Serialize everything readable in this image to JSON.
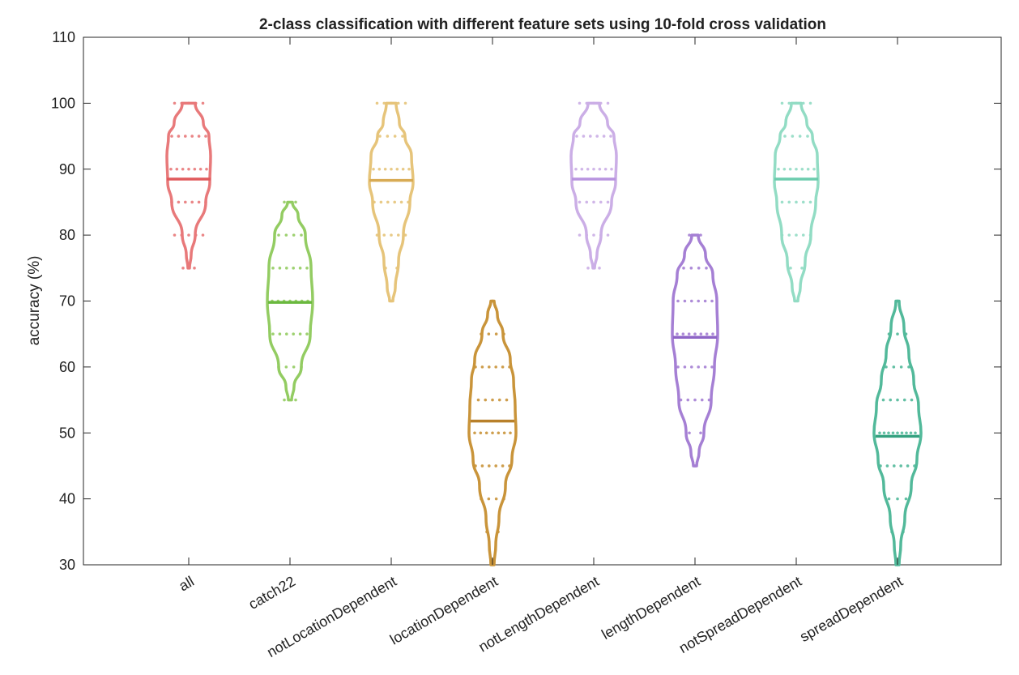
{
  "chart_data": {
    "type": "violin",
    "title": "2-class classification with different feature sets using 10-fold cross validation",
    "xlabel": "",
    "ylabel": "accuracy (%)",
    "ylim": [
      30,
      110
    ],
    "yticks": [
      30,
      40,
      50,
      60,
      70,
      80,
      90,
      100,
      110
    ],
    "grid": false,
    "legend": "none",
    "categories": [
      "all",
      "catch22",
      "notLocationDependent",
      "locationDependent",
      "notLengthDependent",
      "lengthDependent",
      "notSpreadDependent",
      "spreadDependent"
    ],
    "series": [
      {
        "color": "#e8797a",
        "median_color": "#e05a5c",
        "median": 88.5,
        "points": [
          [
            100,
            5
          ],
          [
            95,
            6
          ],
          [
            90,
            7
          ],
          [
            85,
            6
          ],
          [
            80,
            5
          ],
          [
            75,
            2
          ]
        ],
        "profile": [
          [
            75,
            1
          ],
          [
            77,
            3
          ],
          [
            80,
            8
          ],
          [
            85,
            21
          ],
          [
            88,
            26
          ],
          [
            92,
            27
          ],
          [
            95,
            25
          ],
          [
            97,
            18
          ],
          [
            100,
            8
          ]
        ]
      },
      {
        "color": "#93cc62",
        "median_color": "#6ab83e",
        "median": 69.8,
        "points": [
          [
            85,
            2
          ],
          [
            80,
            4
          ],
          [
            75,
            6
          ],
          [
            70,
            7
          ],
          [
            65,
            6
          ],
          [
            60,
            4
          ],
          [
            55,
            2
          ]
        ],
        "profile": [
          [
            55,
            2
          ],
          [
            57,
            5
          ],
          [
            60,
            14
          ],
          [
            65,
            25
          ],
          [
            70,
            28
          ],
          [
            75,
            26
          ],
          [
            80,
            19
          ],
          [
            83,
            10
          ],
          [
            85,
            3
          ]
        ]
      },
      {
        "color": "#e6c47a",
        "median_color": "#d8ab55",
        "median": 88.3,
        "points": [
          [
            100,
            5
          ],
          [
            95,
            4
          ],
          [
            90,
            7
          ],
          [
            85,
            6
          ],
          [
            80,
            5
          ],
          [
            75,
            2
          ],
          [
            70,
            1
          ]
        ],
        "profile": [
          [
            70,
            2
          ],
          [
            72,
            5
          ],
          [
            76,
            9
          ],
          [
            80,
            15
          ],
          [
            85,
            23
          ],
          [
            88,
            27
          ],
          [
            92,
            25
          ],
          [
            95,
            17
          ],
          [
            97,
            10
          ],
          [
            100,
            6
          ]
        ]
      },
      {
        "color": "#c9943a",
        "median_color": "#b8802a",
        "median": 51.8,
        "points": [
          [
            70,
            1
          ],
          [
            65,
            4
          ],
          [
            60,
            6
          ],
          [
            55,
            5
          ],
          [
            50,
            7
          ],
          [
            45,
            6
          ],
          [
            40,
            4
          ],
          [
            35,
            2
          ],
          [
            30,
            1
          ]
        ],
        "profile": [
          [
            30,
            2
          ],
          [
            33,
            4
          ],
          [
            37,
            8
          ],
          [
            42,
            16
          ],
          [
            46,
            24
          ],
          [
            50,
            29
          ],
          [
            54,
            28
          ],
          [
            58,
            26
          ],
          [
            61,
            22
          ],
          [
            65,
            13
          ],
          [
            68,
            6
          ],
          [
            70,
            2
          ]
        ]
      },
      {
        "color": "#cbaee6",
        "median_color": "#b894df",
        "median": 88.5,
        "points": [
          [
            100,
            5
          ],
          [
            95,
            6
          ],
          [
            90,
            7
          ],
          [
            85,
            5
          ],
          [
            80,
            5
          ],
          [
            75,
            2
          ]
        ],
        "profile": [
          [
            75,
            1
          ],
          [
            77,
            4
          ],
          [
            80,
            9
          ],
          [
            85,
            22
          ],
          [
            88,
            27
          ],
          [
            92,
            28
          ],
          [
            95,
            25
          ],
          [
            97,
            17
          ],
          [
            100,
            7
          ]
        ]
      },
      {
        "color": "#a57fd4",
        "median_color": "#8e65c6",
        "median": 64.5,
        "points": [
          [
            80,
            2
          ],
          [
            75,
            4
          ],
          [
            70,
            6
          ],
          [
            65,
            7
          ],
          [
            60,
            6
          ],
          [
            55,
            5
          ],
          [
            50,
            2
          ],
          [
            45,
            1
          ]
        ],
        "profile": [
          [
            45,
            2
          ],
          [
            47,
            5
          ],
          [
            50,
            11
          ],
          [
            55,
            20
          ],
          [
            60,
            24
          ],
          [
            65,
            28
          ],
          [
            70,
            27
          ],
          [
            74,
            22
          ],
          [
            77,
            13
          ],
          [
            80,
            4
          ]
        ]
      },
      {
        "color": "#92dcc4",
        "median_color": "#6cccae",
        "median": 88.5,
        "points": [
          [
            100,
            5
          ],
          [
            95,
            4
          ],
          [
            90,
            7
          ],
          [
            85,
            5
          ],
          [
            80,
            5
          ],
          [
            75,
            2
          ]
        ],
        "profile": [
          [
            70,
            2
          ],
          [
            72,
            5
          ],
          [
            76,
            11
          ],
          [
            80,
            18
          ],
          [
            85,
            24
          ],
          [
            88,
            27
          ],
          [
            92,
            26
          ],
          [
            95,
            20
          ],
          [
            97,
            13
          ],
          [
            100,
            6
          ]
        ]
      },
      {
        "color": "#52b99a",
        "median_color": "#33a17f",
        "median": 49.5,
        "points": [
          [
            70,
            1
          ],
          [
            65,
            3
          ],
          [
            60,
            4
          ],
          [
            55,
            5
          ],
          [
            50,
            9
          ],
          [
            45,
            6
          ],
          [
            40,
            3
          ],
          [
            35,
            2
          ],
          [
            30,
            1
          ]
        ],
        "profile": [
          [
            30,
            2
          ],
          [
            33,
            4
          ],
          [
            37,
            9
          ],
          [
            42,
            17
          ],
          [
            46,
            24
          ],
          [
            50,
            29
          ],
          [
            54,
            26
          ],
          [
            58,
            20
          ],
          [
            62,
            14
          ],
          [
            66,
            8
          ],
          [
            70,
            2
          ]
        ]
      }
    ]
  }
}
